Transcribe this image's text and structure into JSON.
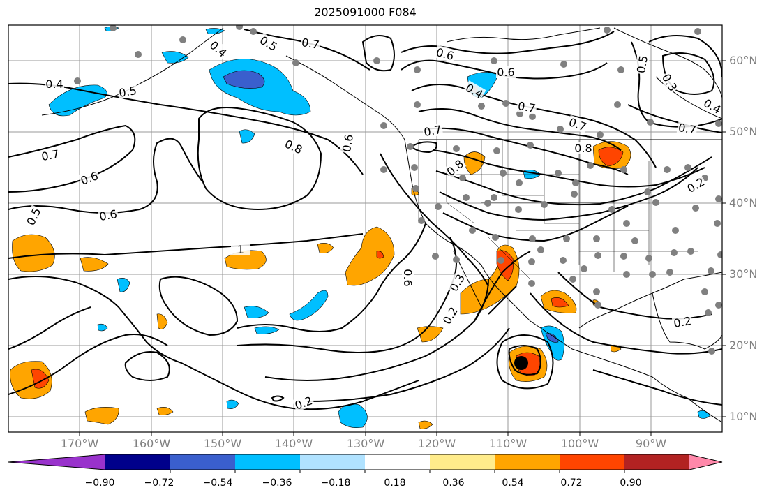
{
  "title": "2025091000 F084",
  "lat_labels": [
    "60°N",
    "50°N",
    "40°N",
    "30°N",
    "20°N",
    "10°N"
  ],
  "lon_labels": [
    "170°W",
    "160°W",
    "150°W",
    "140°W",
    "130°W",
    "120°W",
    "110°W",
    "100°W",
    "90°W"
  ],
  "colorbar": {
    "tick_labels": [
      "−0.90",
      "−0.72",
      "−0.54",
      "−0.36",
      "−0.18",
      "0.18",
      "0.36",
      "0.54",
      "0.72",
      "0.90"
    ],
    "colors": [
      "#9932cc",
      "#00008b",
      "#3a5fcd",
      "#00bfff",
      "#b0e2ff",
      "#ffffff",
      "#ffec8b",
      "#ffa500",
      "#ff4500",
      "#b22222",
      "#ff88aa"
    ]
  },
  "contour_labels": [
    "0.4",
    "0.5",
    "0.7",
    "0.6",
    "0.5",
    "0.6",
    "0.7",
    "0.5",
    "0.4",
    "0.8",
    "1",
    "0.6",
    "0.7",
    "0.6",
    "0.4",
    "0.6",
    "0.7",
    "0.7",
    "0.8",
    "0.5",
    "0.3",
    "0.4",
    "0.7",
    "0.8",
    "0.6",
    "0.3",
    "0.2",
    "0.2",
    "0.2",
    "0.2"
  ]
}
